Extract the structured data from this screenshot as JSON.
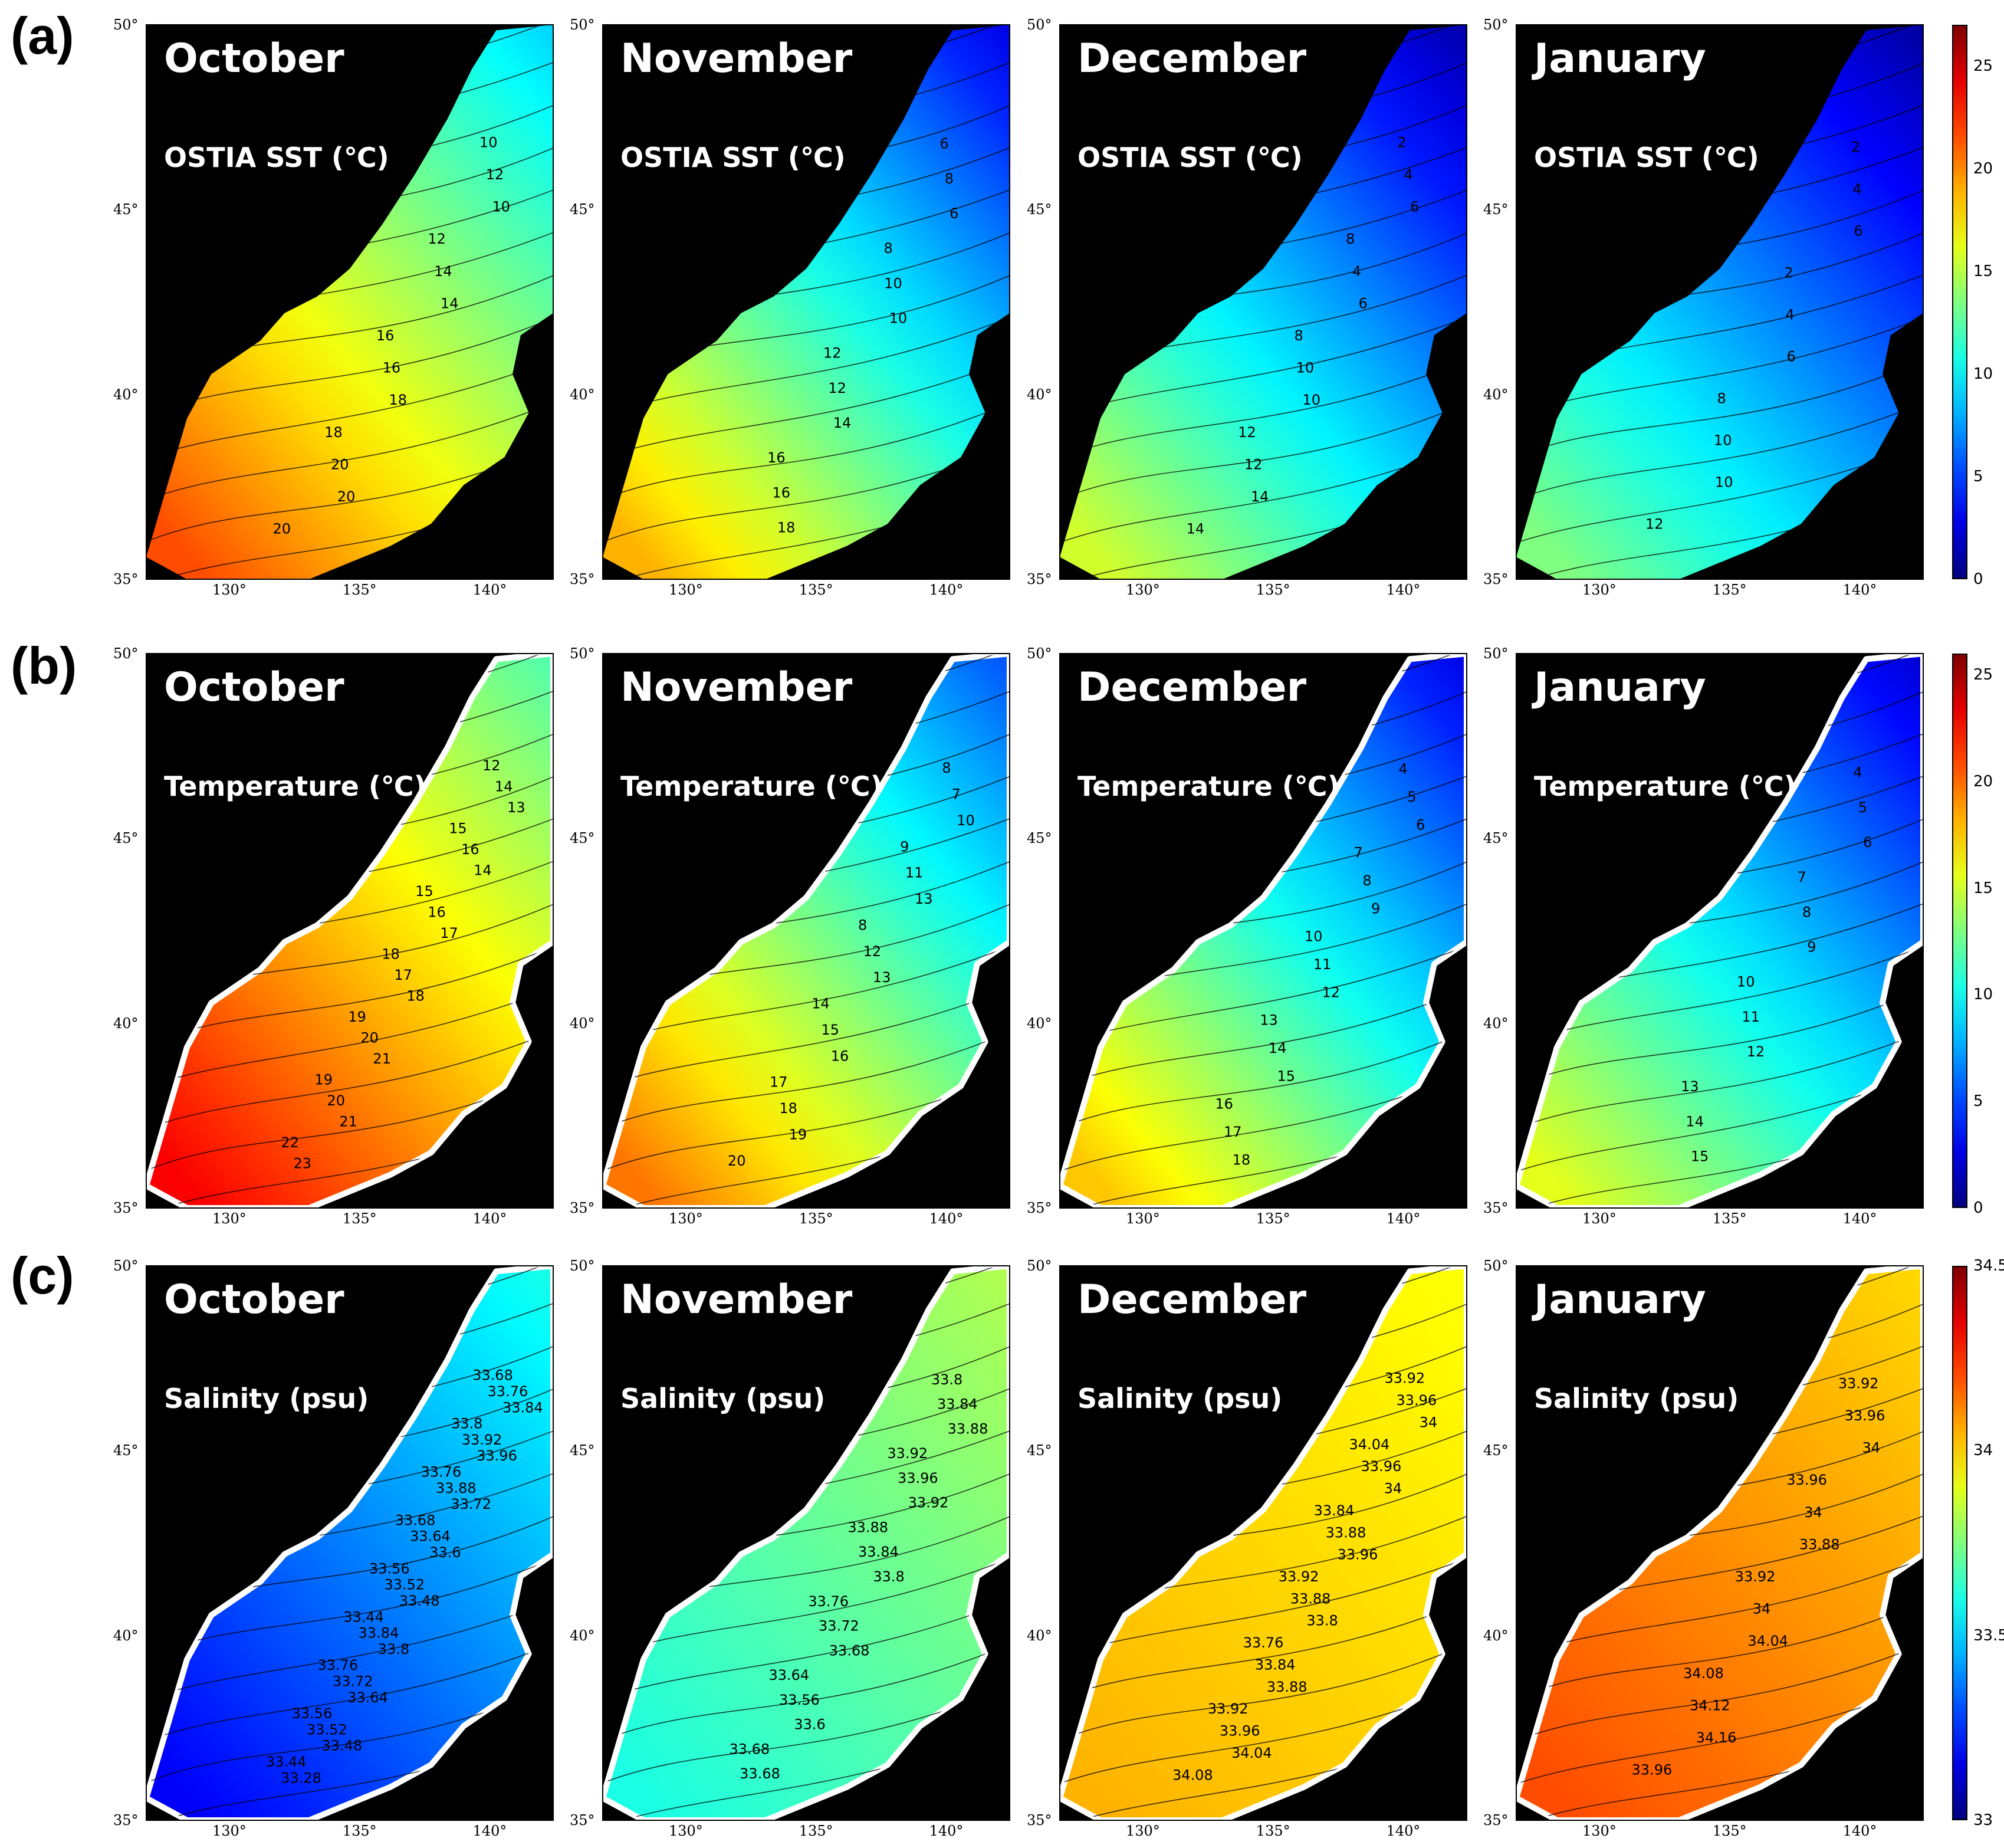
{
  "rows": [
    {
      "label": "(a)",
      "variable": "OSTIA SST (℃)",
      "colorbar_ticks": [
        "25",
        "20",
        "15",
        "10",
        "5",
        "0"
      ],
      "colorbar_range": [
        0,
        27
      ]
    },
    {
      "label": "(b)",
      "variable": "Temperature (℃)",
      "colorbar_ticks": [
        "25",
        "20",
        "15",
        "10",
        "5",
        "0"
      ],
      "colorbar_range": [
        0,
        26
      ]
    },
    {
      "label": "(c)",
      "variable": "Salinity (psu)",
      "colorbar_ticks": [
        "34.5",
        "34",
        "33.5",
        "33"
      ],
      "colorbar_range": [
        33,
        34.5
      ]
    }
  ],
  "months": [
    "October",
    "November",
    "December",
    "January"
  ],
  "lat_ticks": [
    "50°",
    "45°",
    "40°",
    "35°"
  ],
  "lon_ticks": [
    "130°",
    "135°",
    "140°"
  ],
  "colorbar_colormap": "jet",
  "land_color": "#000000",
  "contour_labels": {
    "a": [
      [
        "10",
        "12",
        "10",
        "12",
        "14",
        "14",
        "16",
        "16",
        "18",
        "18",
        "20",
        "20",
        "20"
      ],
      [
        "6",
        "8",
        "6",
        "8",
        "10",
        "10",
        "12",
        "12",
        "14",
        "16",
        "16",
        "18"
      ],
      [
        "2",
        "4",
        "6",
        "8",
        "4",
        "6",
        "8",
        "10",
        "10",
        "12",
        "12",
        "14",
        "14"
      ],
      [
        "2",
        "4",
        "6",
        "2",
        "4",
        "6",
        "8",
        "10",
        "10",
        "12"
      ]
    ],
    "b": [
      [
        "12",
        "14",
        "13",
        "15",
        "16",
        "14",
        "15",
        "16",
        "17",
        "18",
        "17",
        "18",
        "19",
        "20",
        "21",
        "19",
        "20",
        "21",
        "22",
        "23"
      ],
      [
        "8",
        "7",
        "10",
        "9",
        "11",
        "13",
        "8",
        "12",
        "13",
        "14",
        "15",
        "16",
        "17",
        "18",
        "19",
        "20"
      ],
      [
        "4",
        "5",
        "6",
        "7",
        "8",
        "9",
        "10",
        "11",
        "12",
        "13",
        "14",
        "15",
        "16",
        "17",
        "18"
      ],
      [
        "4",
        "5",
        "6",
        "7",
        "8",
        "9",
        "10",
        "11",
        "12",
        "13",
        "14",
        "15"
      ]
    ],
    "c": [
      [
        "33.68",
        "33.76",
        "33.84",
        "33.8",
        "33.92",
        "33.96",
        "33.76",
        "33.88",
        "33.72",
        "33.68",
        "33.64",
        "33.6",
        "33.56",
        "33.52",
        "33.48",
        "33.44",
        "33.84",
        "33.8",
        "33.76",
        "33.72",
        "33.64",
        "33.56",
        "33.52",
        "33.48",
        "33.44",
        "33.28"
      ],
      [
        "33.8",
        "33.84",
        "33.88",
        "33.92",
        "33.96",
        "33.92",
        "33.88",
        "33.84",
        "33.8",
        "33.76",
        "33.72",
        "33.68",
        "33.64",
        "33.56",
        "33.6",
        "33.68",
        "33.68"
      ],
      [
        "33.92",
        "33.96",
        "34",
        "34.04",
        "33.96",
        "34",
        "33.84",
        "33.88",
        "33.96",
        "33.92",
        "33.88",
        "33.8",
        "33.76",
        "33.84",
        "33.88",
        "33.92",
        "33.96",
        "34.04",
        "34.08"
      ],
      [
        "33.92",
        "33.96",
        "34",
        "33.96",
        "34",
        "33.88",
        "33.92",
        "34",
        "34.04",
        "34.08",
        "34.12",
        "34.16",
        "33.96"
      ]
    ]
  }
}
